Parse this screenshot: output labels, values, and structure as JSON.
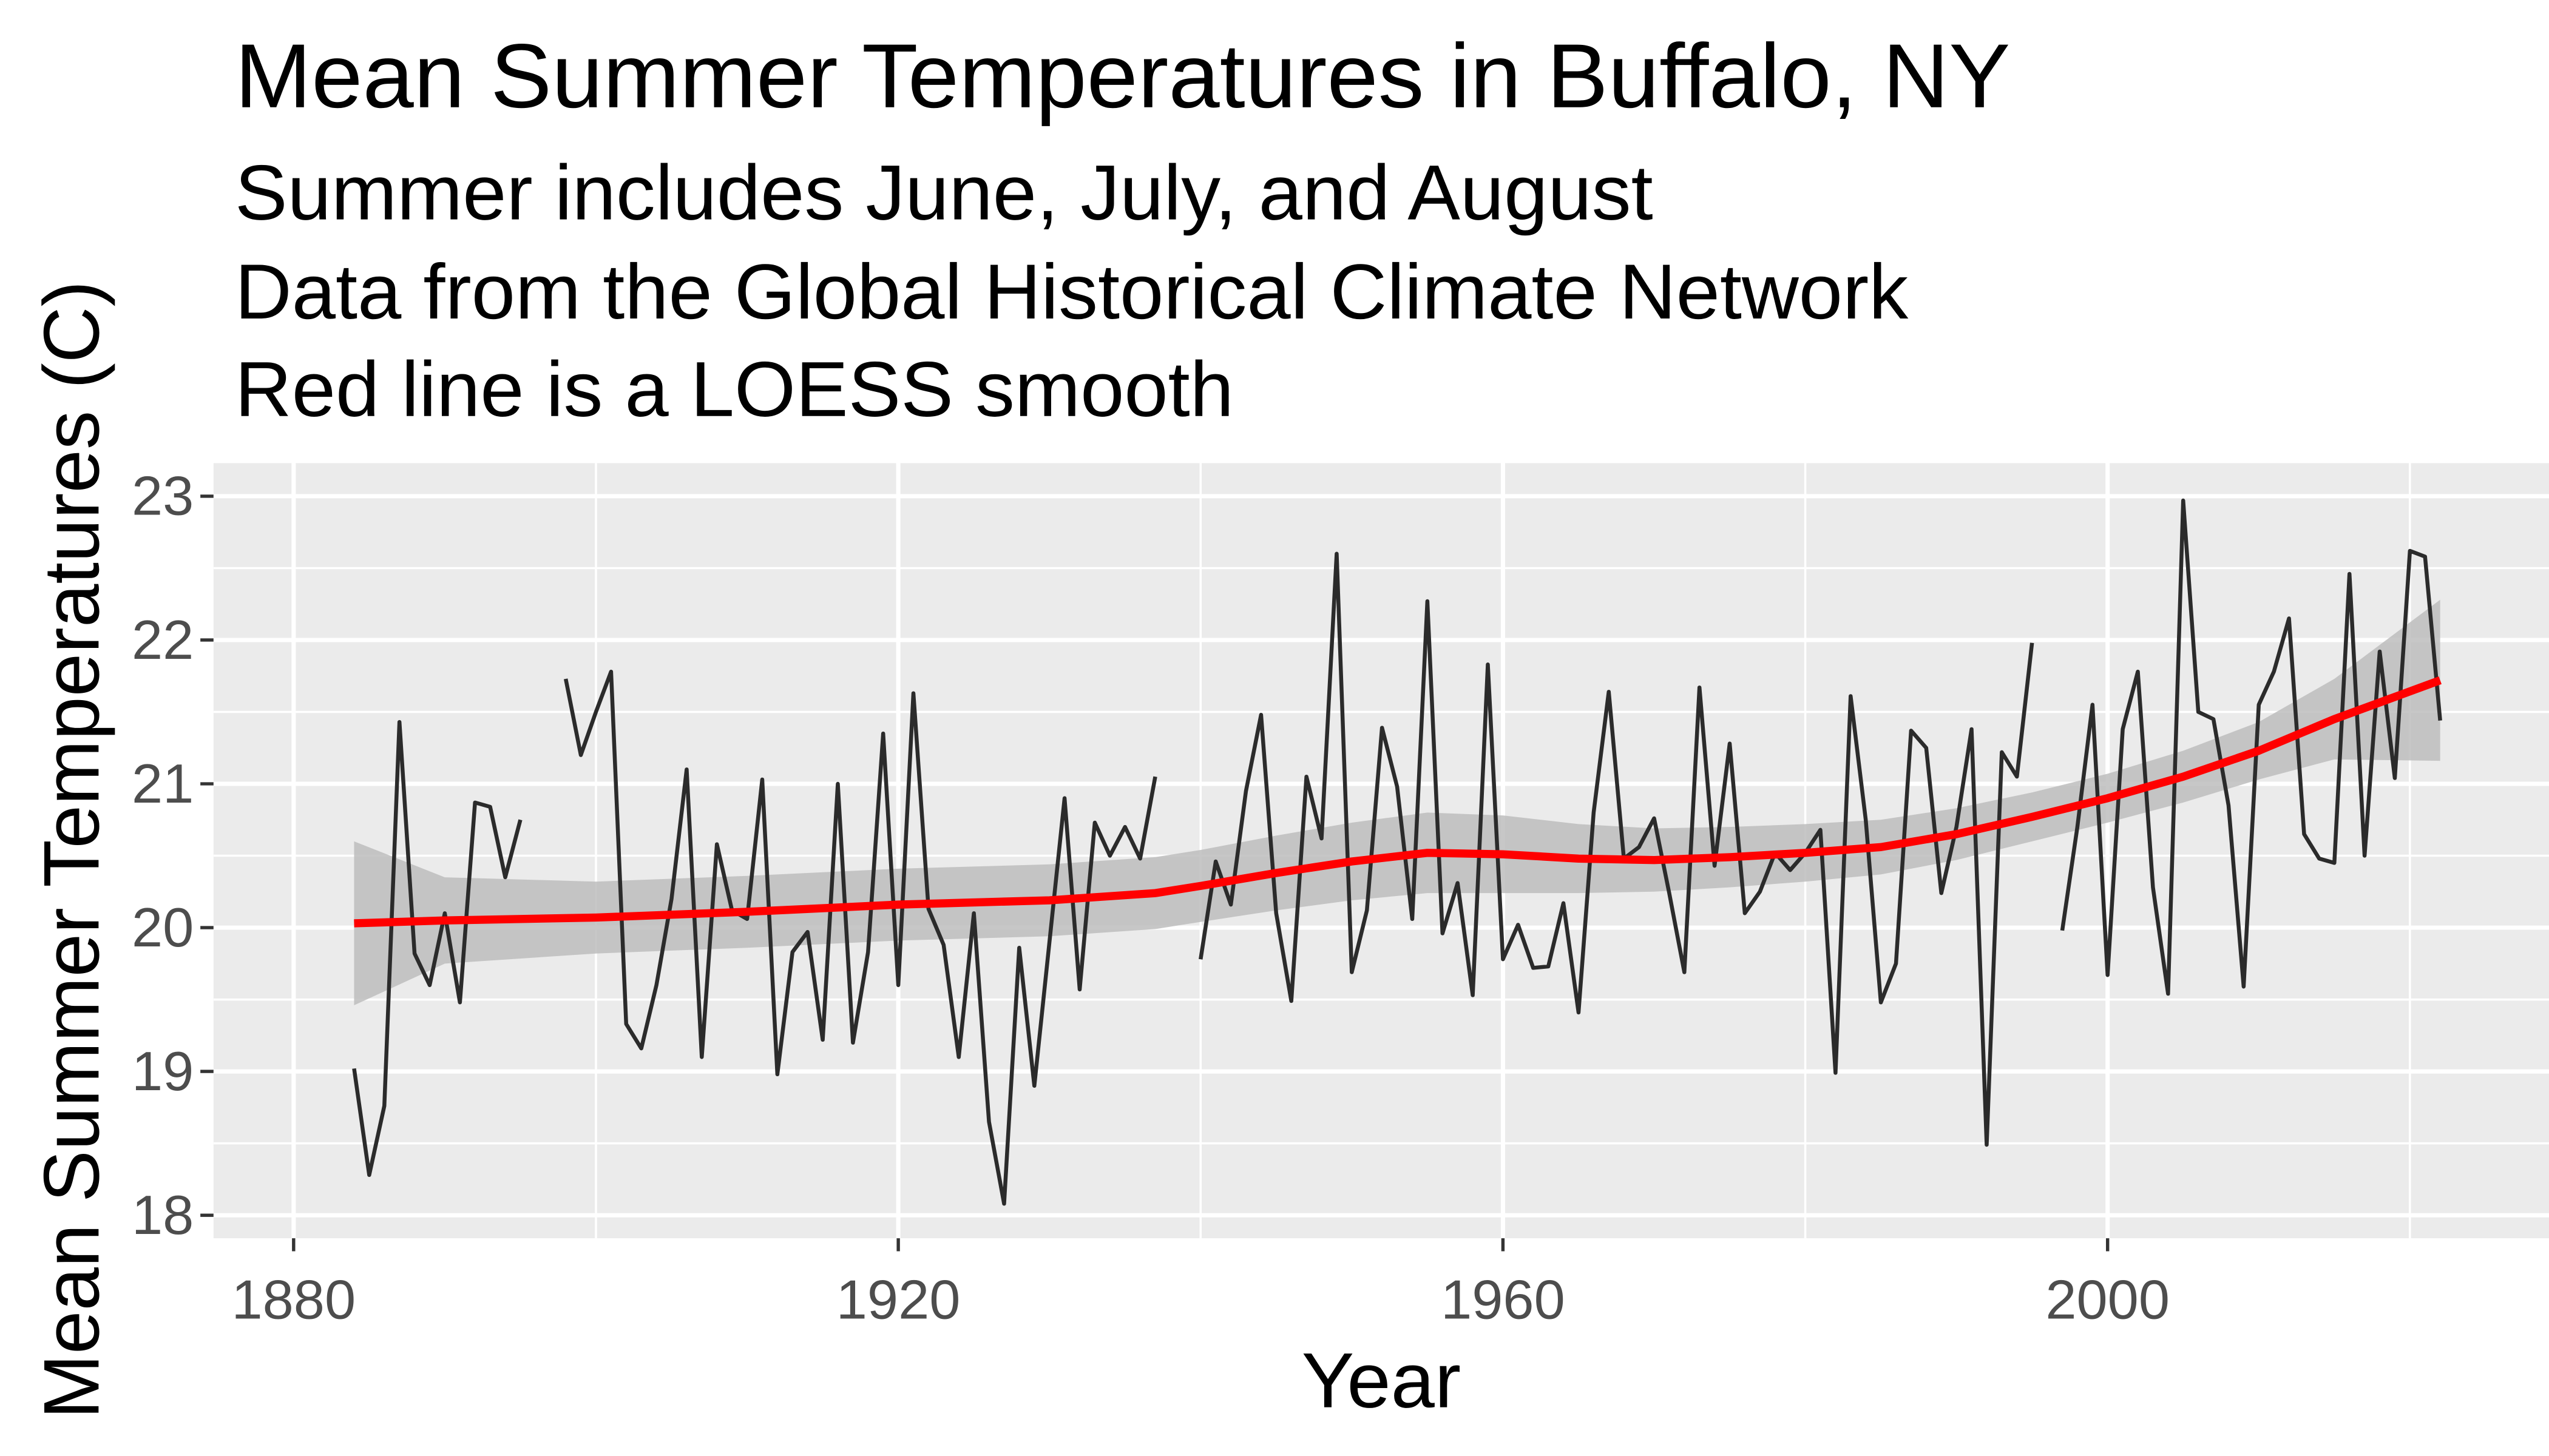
{
  "chart_data": {
    "type": "line",
    "title": "Mean Summer Temperatures in Buffalo, NY",
    "subtitle": [
      "Summer includes June, July, and August",
      "Data from the Global Historical Climate Network",
      "Red line is a LOESS smooth"
    ],
    "x_label": "Year",
    "y_label": "Mean Summer Temperatures (C)",
    "xlim": [
      1874.7,
      2029.2
    ],
    "ylim": [
      17.84,
      23.23
    ],
    "xticks": [
      1880,
      1920,
      1960,
      2000
    ],
    "yticks": [
      18,
      19,
      20,
      21,
      22,
      23
    ],
    "grid": true,
    "background": "#ebebeb",
    "x": [
      1884,
      1885,
      1886,
      1887,
      1888,
      1889,
      1890,
      1891,
      1892,
      1893,
      1894,
      1895,
      1896,
      1897,
      1898,
      1899,
      1900,
      1901,
      1902,
      1903,
      1904,
      1905,
      1906,
      1907,
      1908,
      1909,
      1910,
      1911,
      1912,
      1913,
      1914,
      1915,
      1916,
      1917,
      1918,
      1919,
      1920,
      1921,
      1922,
      1923,
      1924,
      1925,
      1926,
      1927,
      1928,
      1929,
      1930,
      1931,
      1932,
      1933,
      1934,
      1935,
      1936,
      1937,
      1938,
      1939,
      1940,
      1941,
      1942,
      1943,
      1944,
      1945,
      1946,
      1947,
      1948,
      1949,
      1950,
      1951,
      1952,
      1953,
      1954,
      1955,
      1956,
      1957,
      1958,
      1959,
      1960,
      1961,
      1962,
      1963,
      1964,
      1965,
      1966,
      1967,
      1968,
      1969,
      1970,
      1971,
      1972,
      1973,
      1974,
      1975,
      1976,
      1977,
      1978,
      1979,
      1980,
      1981,
      1982,
      1983,
      1984,
      1985,
      1986,
      1987,
      1988,
      1989,
      1990,
      1991,
      1992,
      1993,
      1994,
      1995,
      1996,
      1997,
      1998,
      1999,
      2000,
      2001,
      2002,
      2003,
      2004,
      2005,
      2006,
      2007,
      2008,
      2009,
      2010,
      2011,
      2012,
      2013,
      2014,
      2015,
      2016,
      2017,
      2018,
      2019,
      2020,
      2021,
      2022
    ],
    "series": [
      {
        "color": "#2b2b2b",
        "values": [
          19.02,
          18.28,
          18.76,
          21.43,
          19.82,
          19.6,
          20.1,
          19.48,
          20.87,
          20.84,
          20.35,
          20.75,
          null,
          null,
          21.73,
          21.2,
          21.5,
          21.78,
          19.33,
          19.16,
          19.6,
          20.2,
          21.1,
          19.1,
          20.58,
          20.12,
          20.06,
          21.03,
          18.98,
          19.83,
          19.97,
          19.22,
          21.0,
          19.2,
          19.83,
          21.35,
          19.6,
          21.63,
          20.13,
          19.88,
          19.1,
          20.1,
          18.65,
          18.08,
          19.86,
          18.9,
          19.9,
          20.9,
          19.57,
          20.73,
          20.5,
          20.7,
          20.48,
          21.05,
          null,
          null,
          19.78,
          20.46,
          20.16,
          20.95,
          21.48,
          20.1,
          19.49,
          21.05,
          20.62,
          22.6,
          19.69,
          20.12,
          21.39,
          20.98,
          20.06,
          22.27,
          19.96,
          20.31,
          19.53,
          21.83,
          19.78,
          20.02,
          19.72,
          19.73,
          20.17,
          19.41,
          20.8,
          21.64,
          20.48,
          20.56,
          20.76,
          20.24,
          19.69,
          21.67,
          20.43,
          21.28,
          20.1,
          20.25,
          20.52,
          20.4,
          20.52,
          20.68,
          18.99,
          21.61,
          20.75,
          19.48,
          19.75,
          21.37,
          21.25,
          20.24,
          20.7,
          21.38,
          18.49,
          21.22,
          21.05,
          21.98,
          null,
          19.98,
          20.7,
          21.55,
          19.67,
          21.38,
          21.78,
          20.28,
          19.54,
          22.97,
          21.5,
          21.45,
          20.85,
          19.59,
          21.55,
          21.78,
          22.15,
          20.65,
          20.48,
          20.45,
          22.46,
          20.5,
          21.92,
          21.04,
          22.62,
          22.58,
          21.44
        ]
      }
    ],
    "smooth": {
      "color": "#ff0000",
      "band_color": "#bdbdbd",
      "x": [
        1884,
        1890,
        1900,
        1910,
        1920,
        1930,
        1937,
        1940,
        1945,
        1950,
        1955,
        1960,
        1965,
        1970,
        1975,
        1980,
        1985,
        1990,
        1995,
        2000,
        2005,
        2010,
        2015,
        2022
      ],
      "values": [
        20.03,
        20.05,
        20.07,
        20.11,
        20.16,
        20.19,
        20.24,
        20.29,
        20.38,
        20.46,
        20.52,
        20.51,
        20.48,
        20.47,
        20.49,
        20.52,
        20.56,
        20.65,
        20.77,
        20.9,
        21.05,
        21.23,
        21.45,
        21.72
      ],
      "lower": [
        19.46,
        19.75,
        19.82,
        19.86,
        19.91,
        19.94,
        19.99,
        20.04,
        20.12,
        20.19,
        20.24,
        20.24,
        20.24,
        20.25,
        20.28,
        20.32,
        20.37,
        20.47,
        20.6,
        20.73,
        20.87,
        21.03,
        21.17,
        21.16
      ],
      "upper": [
        20.6,
        20.35,
        20.32,
        20.36,
        20.41,
        20.44,
        20.49,
        20.54,
        20.64,
        20.73,
        20.8,
        20.78,
        20.72,
        20.69,
        20.7,
        20.72,
        20.75,
        20.83,
        20.94,
        21.07,
        21.23,
        21.43,
        21.73,
        22.28
      ]
    }
  }
}
